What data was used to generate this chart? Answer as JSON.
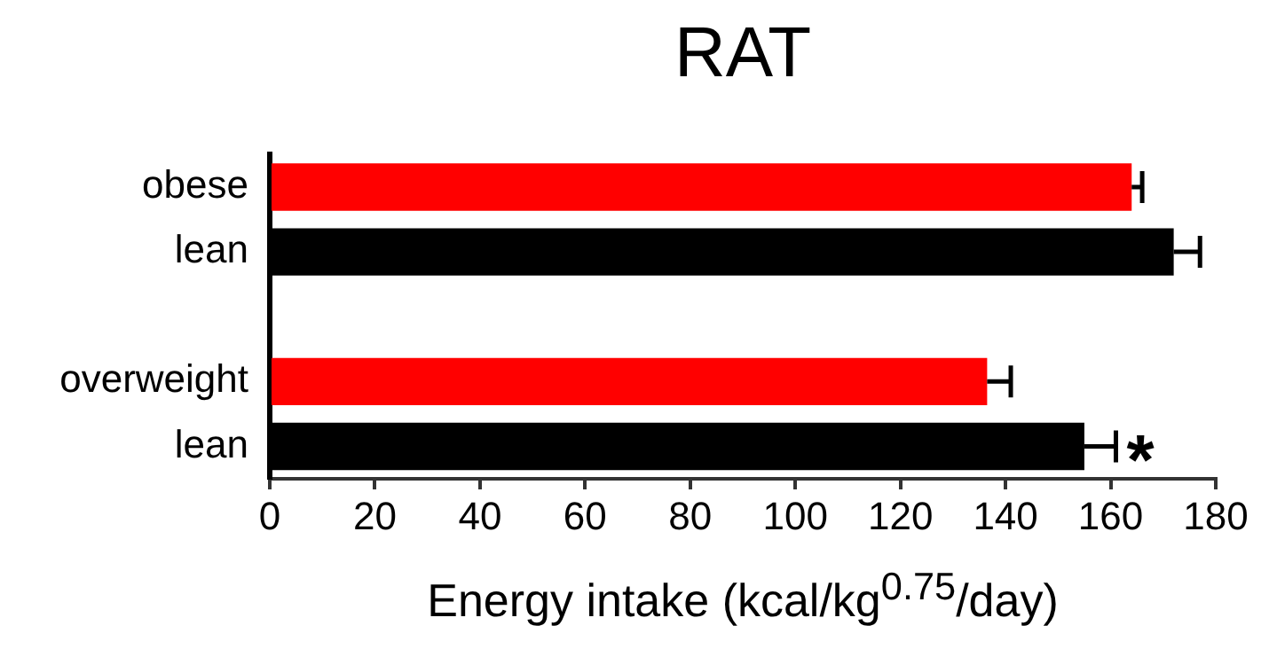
{
  "chart_data": {
    "type": "bar",
    "orientation": "horizontal",
    "title": "RAT",
    "xlabel": "Energy intake (kcal/kg$^{0.75}$/day)",
    "categories": [
      "obese",
      "lean",
      null,
      "overweight",
      "lean"
    ],
    "values": [
      164,
      172,
      null,
      136.5,
      155
    ],
    "colors": [
      "#ff0000",
      "#000000",
      "#000000",
      "#ff0000",
      "#000000"
    ],
    "errors": [
      [
        164,
        166
      ],
      [
        172,
        177
      ],
      null,
      [
        136.5,
        141
      ],
      [
        155,
        161
      ]
    ],
    "xlim": [
      0,
      180
    ],
    "xticks": [
      0,
      20,
      40,
      60,
      80,
      100,
      120,
      140,
      160,
      180
    ],
    "annotations": [
      "*"
    ]
  }
}
